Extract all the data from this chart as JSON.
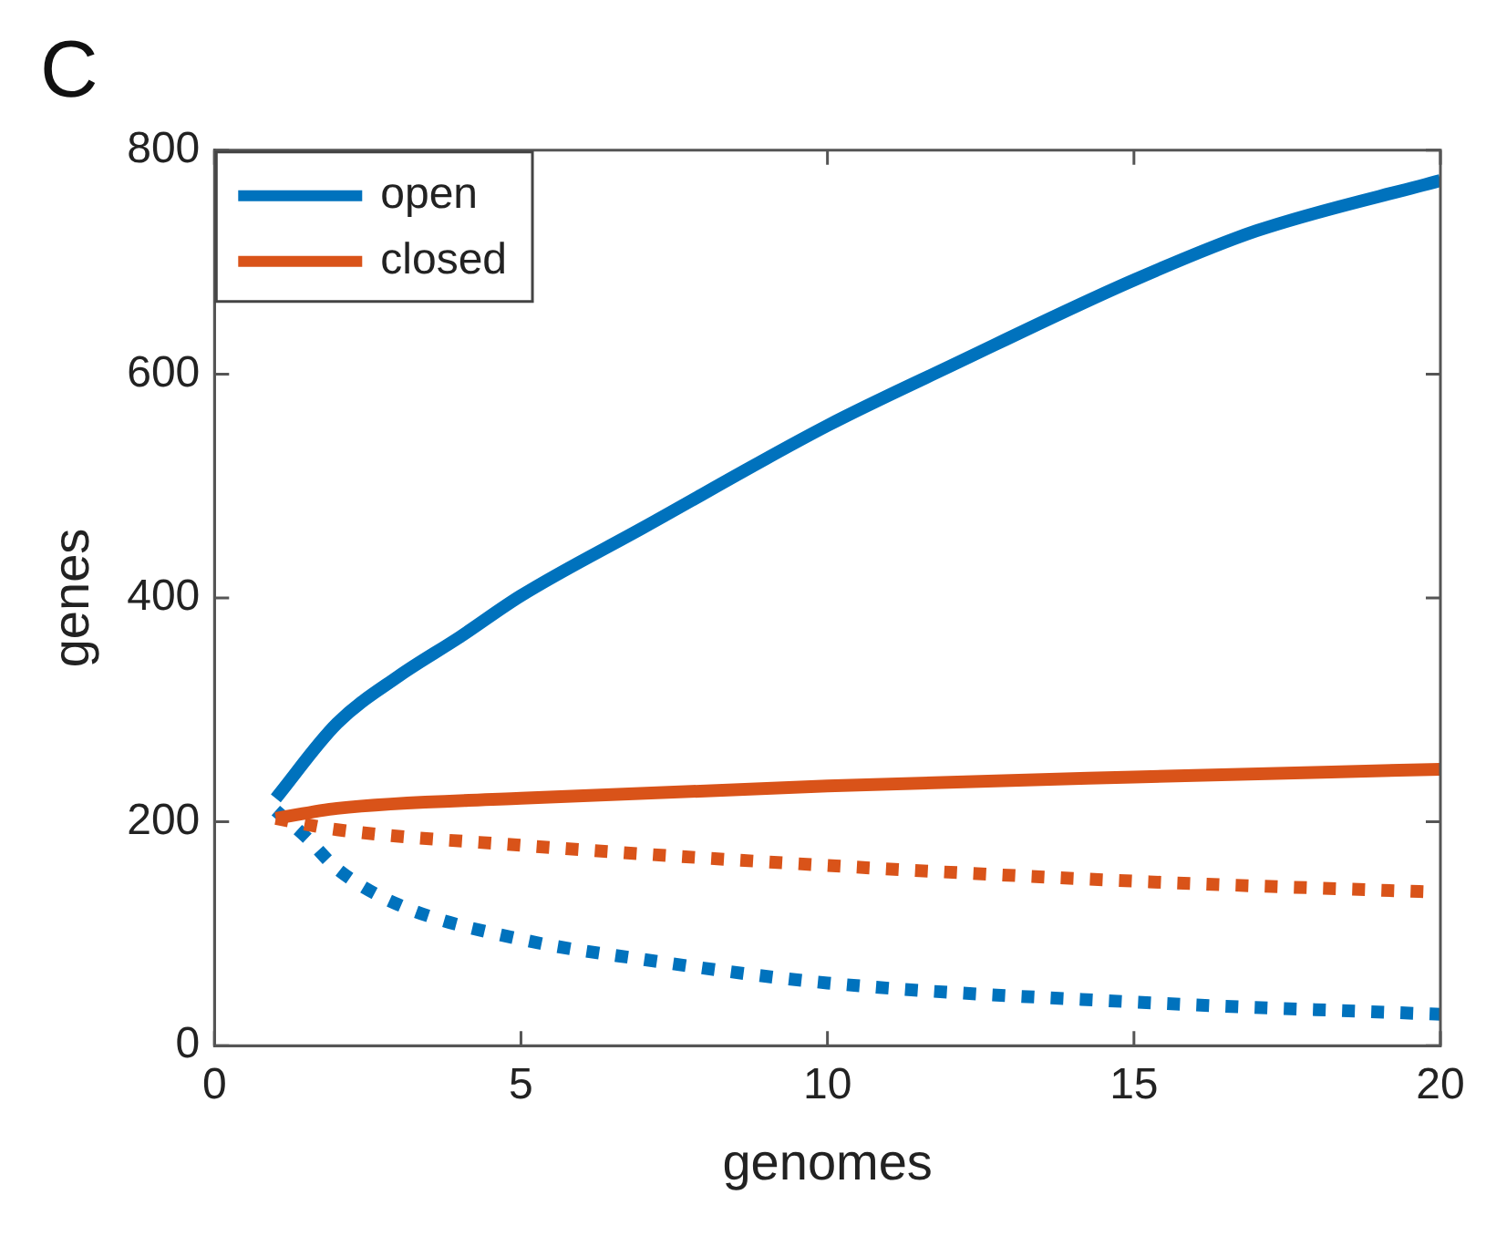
{
  "chart_data": {
    "type": "line",
    "title": "C",
    "xlabel": "genomes",
    "ylabel": "genes",
    "xlim": [
      0,
      20
    ],
    "xticks": [
      0,
      5,
      10,
      15,
      20
    ],
    "ylim": [
      0,
      800
    ],
    "yticks": [
      0,
      200,
      400,
      600,
      800
    ],
    "grid": false,
    "legend": "top left",
    "marker": "none",
    "series": [
      {
        "name": "open",
        "color": "#0072bd",
        "line_style": "solid",
        "x": [
          1,
          2,
          3,
          4,
          5,
          7,
          10,
          12,
          15,
          17,
          20
        ],
        "values": [
          221,
          288,
          330,
          365,
          402,
          463,
          554,
          607,
          684,
          728,
          773
        ]
      },
      {
        "name": "closed",
        "color": "#d95319",
        "line_style": "solid",
        "x": [
          1,
          2,
          5,
          10,
          15,
          20
        ],
        "values": [
          203,
          212,
          221,
          232,
          240,
          247
        ]
      },
      {
        "color": "#d95319",
        "line_style": "dotted",
        "x": [
          1,
          2,
          5,
          10,
          15,
          20
        ],
        "values": [
          203,
          193,
          179,
          161,
          147,
          137
        ]
      },
      {
        "color": "#0072bd",
        "line_style": "dotted",
        "x": [
          1,
          1.5,
          2,
          3,
          5,
          7,
          10,
          15,
          20
        ],
        "values": [
          210,
          186,
          158,
          126,
          95,
          77,
          56,
          39,
          28
        ]
      }
    ]
  }
}
